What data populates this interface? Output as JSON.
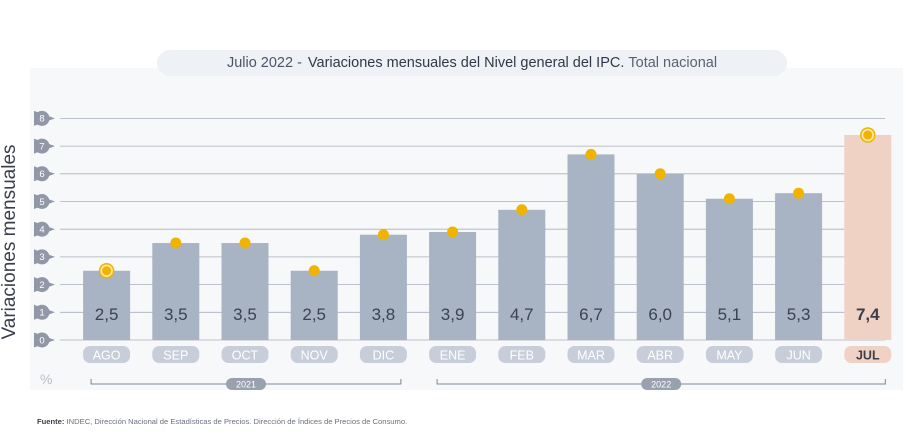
{
  "title": {
    "prefix": "Julio 2022 -",
    "main": "Variaciones mensuales del Nivel general del IPC.",
    "suffix": "Total nacional"
  },
  "ylabel": "Variaciones mensuales",
  "unit": "%",
  "source": {
    "label": "Fuente:",
    "text": "INDEC, Dirección Nacional de Estadísticas de Precios. Dirección de Índices de Precios de Consumo."
  },
  "colors": {
    "bar": "#a8b3c3",
    "bar_highlight": "#efd2c4",
    "dot": "#f0b400",
    "category_pill": "#c7ceda",
    "category_pill_highlight": "#efd2c4",
    "tick_circle": "#9098a8",
    "gridline": "#a9afbb",
    "panel": "#f7f8fa"
  },
  "chart_data": {
    "type": "bar",
    "categories": [
      "AGO",
      "SEP",
      "OCT",
      "NOV",
      "DIC",
      "ENE",
      "FEB",
      "MAR",
      "ABR",
      "MAY",
      "JUN",
      "JUL"
    ],
    "values": [
      2.5,
      3.5,
      3.5,
      2.5,
      3.8,
      3.9,
      4.7,
      6.7,
      6.0,
      5.1,
      5.3,
      7.4
    ],
    "value_labels": [
      "2,5",
      "3,5",
      "3,5",
      "2,5",
      "3,8",
      "3,9",
      "4,7",
      "6,7",
      "6,0",
      "5,1",
      "5,3",
      "7,4"
    ],
    "highlight": "JUL",
    "ylim": [
      0,
      8
    ],
    "yticks": [
      "0",
      "1",
      "2",
      "3",
      "4",
      "5",
      "6",
      "7",
      "8"
    ],
    "grid": true,
    "year_groups": [
      {
        "label": "2021",
        "categories": [
          "AGO",
          "SEP",
          "OCT",
          "NOV",
          "DIC"
        ]
      },
      {
        "label": "2022",
        "categories": [
          "ENE",
          "FEB",
          "MAR",
          "ABR",
          "MAY",
          "JUN",
          "JUL"
        ]
      }
    ]
  }
}
